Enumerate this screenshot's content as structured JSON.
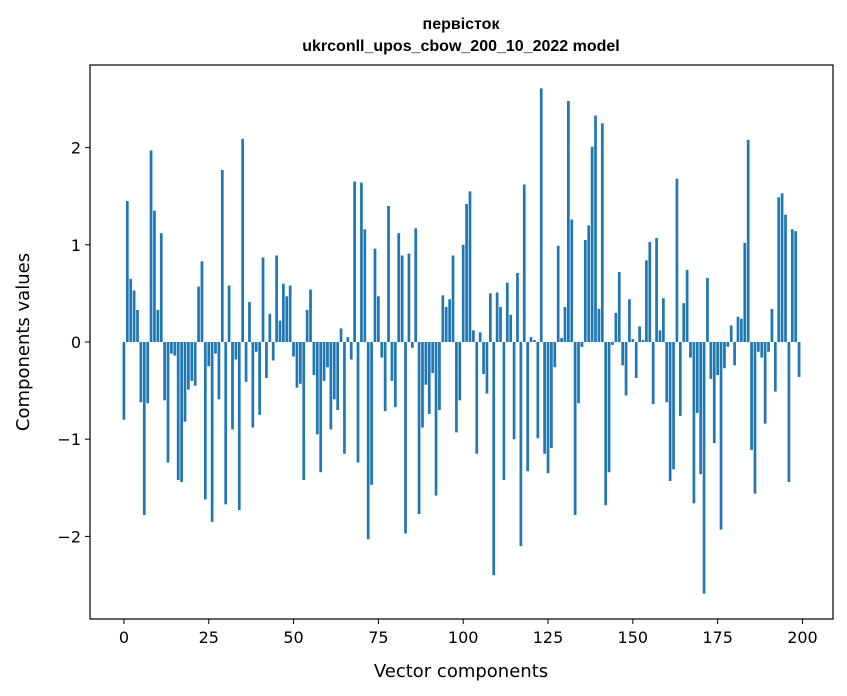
{
  "chart_data": {
    "type": "bar",
    "title_lines": [
      "первісток",
      "ukrconll_upos_cbow_200_10_2022 model"
    ],
    "xlabel": "Vector components",
    "ylabel": "Components values",
    "xlim": [
      -10,
      209
    ],
    "ylim": [
      -2.85,
      2.85
    ],
    "x_ticks": [
      0,
      25,
      50,
      75,
      100,
      125,
      150,
      175,
      200
    ],
    "y_ticks": [
      -2,
      -1,
      0,
      1,
      2
    ],
    "x_tick_labels": [
      "0",
      "25",
      "50",
      "75",
      "100",
      "125",
      "150",
      "175",
      "200"
    ],
    "y_tick_labels": [
      "−2",
      "−1",
      "0",
      "1",
      "2"
    ],
    "bar_color": "#1f77b4",
    "grid": false,
    "values": [
      -0.8,
      1.45,
      0.65,
      0.53,
      0.33,
      -0.62,
      -1.78,
      -0.63,
      1.97,
      1.35,
      0.33,
      1.12,
      -0.6,
      -1.24,
      -0.12,
      -0.14,
      -1.42,
      -1.44,
      -0.82,
      -0.49,
      -0.4,
      -0.45,
      0.57,
      0.83,
      -1.62,
      -0.25,
      -1.85,
      -0.12,
      -0.59,
      1.77,
      -1.67,
      0.58,
      -0.9,
      -0.18,
      -1.73,
      2.09,
      -0.41,
      0.41,
      -0.88,
      -0.1,
      -0.75,
      0.87,
      -0.37,
      0.29,
      -0.19,
      0.89,
      0.22,
      0.6,
      0.47,
      0.58,
      -0.15,
      -0.47,
      -0.43,
      -1.42,
      0.33,
      0.54,
      -0.34,
      -0.95,
      -1.34,
      -0.4,
      -0.26,
      -0.9,
      -0.59,
      -0.7,
      0.14,
      -1.15,
      0.05,
      -0.18,
      1.65,
      -1.24,
      1.64,
      1.16,
      -2.03,
      -1.47,
      0.96,
      0.47,
      -0.16,
      -0.71,
      1.4,
      -0.4,
      -0.67,
      1.12,
      0.89,
      -1.97,
      0.91,
      -0.06,
      1.17,
      -1.77,
      -0.88,
      -0.44,
      -0.74,
      -0.32,
      -1.58,
      -0.7,
      0.48,
      0.36,
      0.44,
      0.89,
      -0.93,
      -0.6,
      1.0,
      1.42,
      1.55,
      0.12,
      -1.15,
      0.1,
      -0.33,
      -0.53,
      0.5,
      -2.4,
      0.51,
      0.36,
      -1.42,
      0.61,
      0.28,
      -1.0,
      0.71,
      -2.1,
      1.62,
      -1.33,
      0.05,
      0.02,
      -0.99,
      2.61,
      -1.15,
      -1.35,
      -1.09,
      -0.26,
      0.99,
      0.04,
      0.36,
      2.48,
      1.26,
      -1.78,
      -0.63,
      -0.05,
      1.05,
      1.2,
      2.01,
      2.33,
      0.34,
      2.25,
      -1.68,
      -1.34,
      -0.03,
      0.3,
      0.72,
      -0.24,
      -0.55,
      0.44,
      0.03,
      -0.37,
      0.16,
      0.02,
      0.84,
      1.03,
      -0.64,
      1.07,
      0.12,
      0.45,
      -0.62,
      -1.43,
      -1.31,
      1.68,
      -0.76,
      0.4,
      0.74,
      -0.16,
      -1.66,
      -0.73,
      -1.36,
      -2.59,
      0.66,
      -0.38,
      -1.04,
      -0.34,
      -1.93,
      -0.27,
      -0.05,
      0.17,
      -0.24,
      0.26,
      0.24,
      1.02,
      2.08,
      -1.11,
      -1.56,
      -0.1,
      -0.16,
      -0.84,
      -0.1,
      0.34,
      -0.51,
      1.49,
      1.53,
      1.31,
      -1.44,
      1.16,
      1.14,
      -0.36
    ]
  }
}
